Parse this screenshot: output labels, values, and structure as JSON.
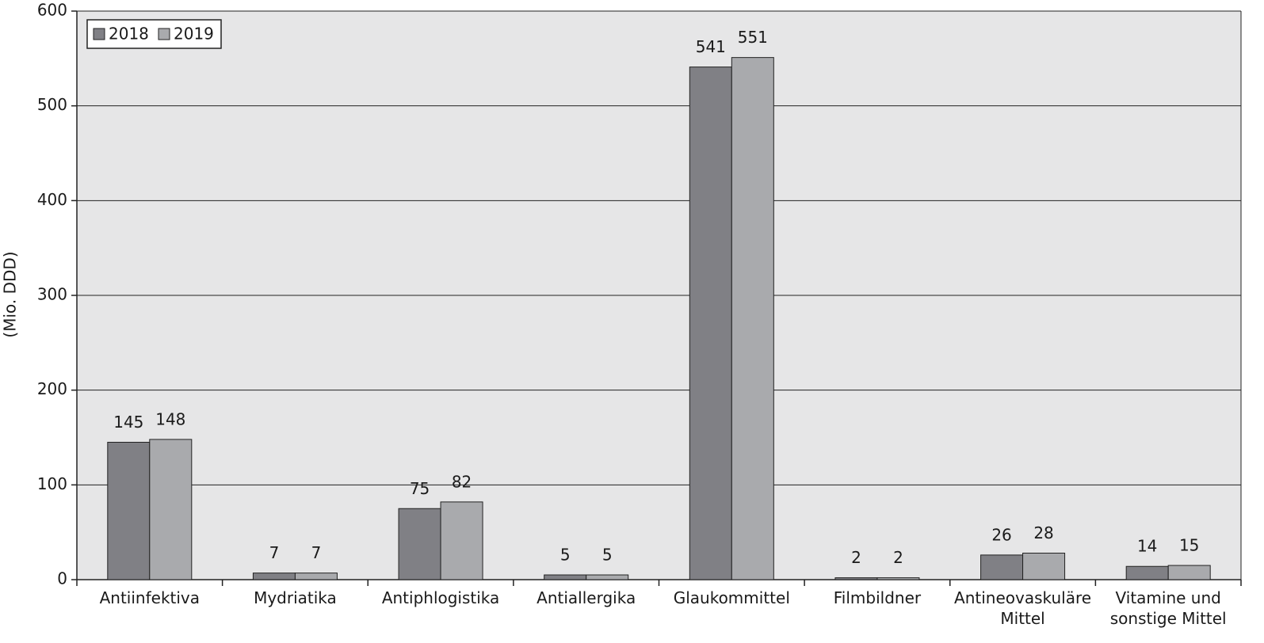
{
  "chart_data": {
    "type": "bar",
    "y_label": "(Mio. DDD)",
    "categories": [
      "Antiinfektiva",
      "Mydriatika",
      "Antiphlogistika",
      "Antiallergika",
      "Glaukommittel",
      "Filmbildner",
      "Antineovaskuläre Mittel",
      "Vitamine und sonstige Mittel"
    ],
    "series": [
      {
        "name": "2018",
        "color": "#808085",
        "values": [
          145,
          7,
          75,
          5,
          541,
          2,
          26,
          14
        ]
      },
      {
        "name": "2019",
        "color": "#a9aaad",
        "values": [
          148,
          7,
          82,
          5,
          551,
          2,
          28,
          15
        ]
      }
    ],
    "ylim": [
      0,
      600
    ],
    "yticks": [
      0,
      100,
      200,
      300,
      400,
      500,
      600
    ],
    "grid": true,
    "legend": "top-left"
  }
}
